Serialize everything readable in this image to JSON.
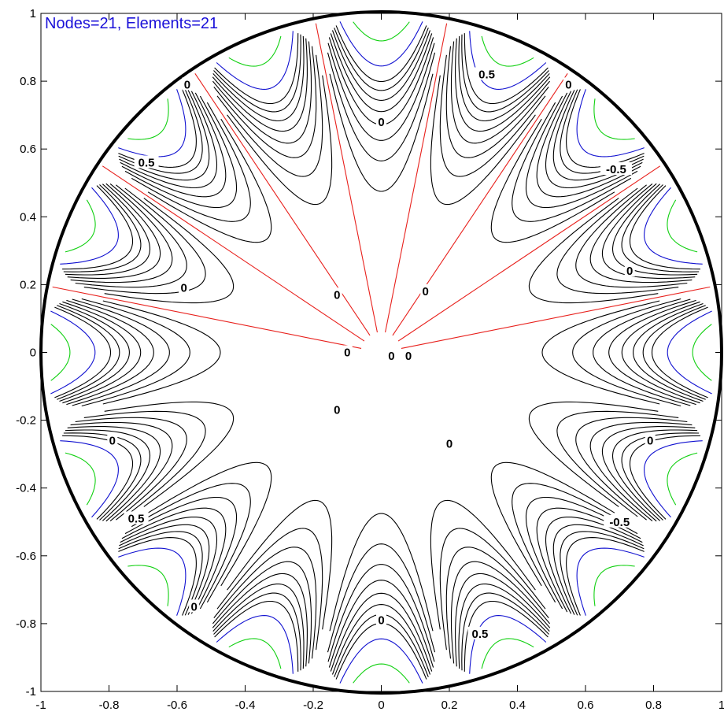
{
  "info_text": "Nodes=21, Elements=21",
  "chart_data": {
    "type": "contour",
    "domain_shape": "unit circle",
    "xlim": [
      -1,
      1
    ],
    "ylim": [
      -1,
      1
    ],
    "x_ticks": [
      "-1",
      "-0.8",
      "-0.6",
      "-0.4",
      "-0.2",
      "0",
      "0.2",
      "0.4",
      "0.6",
      "0.8",
      "1"
    ],
    "y_ticks": [
      "-1",
      "-0.8",
      "-0.6",
      "-0.4",
      "-0.2",
      "0",
      "0.2",
      "0.4",
      "0.6",
      "0.8",
      "1"
    ],
    "field_pattern": "cos(8 theta) angular variation, magnitude growing toward boundary",
    "colors": {
      "zero_level": "#e8201c",
      "mid_level": "#000000",
      "level_0_5": "#1010d0",
      "level_0_7": "#10d010",
      "boundary": "#000000"
    },
    "contour_labels": [
      {
        "text": "0.5",
        "x": 0.31,
        "y": 0.82
      },
      {
        "text": "0.5",
        "x": -0.69,
        "y": 0.56
      },
      {
        "text": "-0.5",
        "x": 0.69,
        "y": 0.54
      },
      {
        "text": "0.5",
        "x": -0.72,
        "y": -0.49
      },
      {
        "text": "-0.5",
        "x": 0.7,
        "y": -0.5
      },
      {
        "text": "0.5",
        "x": 0.29,
        "y": -0.83
      },
      {
        "text": "0",
        "x": -0.57,
        "y": 0.79
      },
      {
        "text": "0",
        "x": 0.55,
        "y": 0.79
      },
      {
        "text": "0",
        "x": 0.0,
        "y": 0.68
      },
      {
        "text": "0",
        "x": -0.58,
        "y": 0.19
      },
      {
        "text": "0",
        "x": 0.73,
        "y": 0.24
      },
      {
        "text": "0",
        "x": -0.13,
        "y": 0.17
      },
      {
        "text": "0",
        "x": 0.13,
        "y": 0.18
      },
      {
        "text": "0",
        "x": -0.1,
        "y": 0.0
      },
      {
        "text": "0",
        "x": 0.03,
        "y": -0.01
      },
      {
        "text": "0",
        "x": 0.08,
        "y": -0.01
      },
      {
        "text": "0",
        "x": -0.13,
        "y": -0.17
      },
      {
        "text": "0",
        "x": 0.2,
        "y": -0.27
      },
      {
        "text": "0",
        "x": -0.79,
        "y": -0.26
      },
      {
        "text": "0",
        "x": 0.79,
        "y": -0.26
      },
      {
        "text": "0",
        "x": -0.55,
        "y": -0.75
      },
      {
        "text": "0",
        "x": 0.0,
        "y": -0.79
      }
    ]
  }
}
